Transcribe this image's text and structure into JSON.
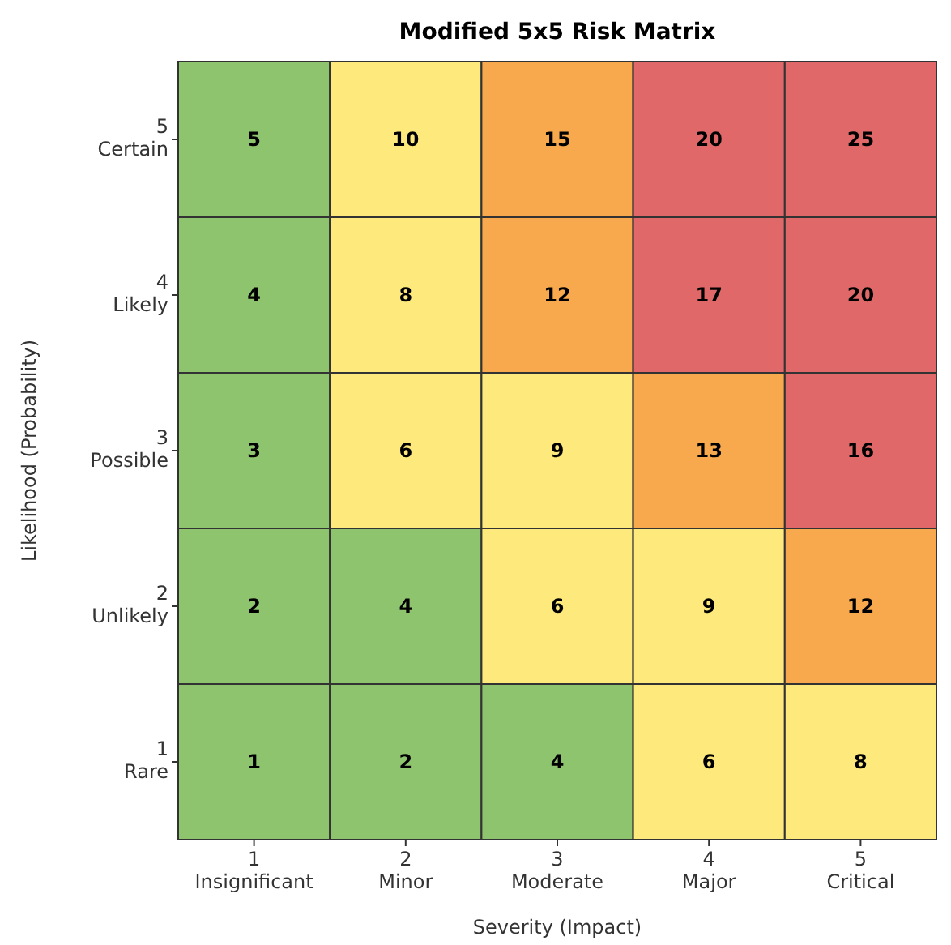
{
  "chart_data": {
    "type": "heatmap",
    "title": "Modified 5x5 Risk Matrix",
    "xlabel": "Severity (Impact)",
    "ylabel": "Likelihood (Probability)",
    "categories": [
      "1\nInsignificant",
      "2\nMinor",
      "3\nModerate",
      "4\nMajor",
      "5\nCritical"
    ],
    "y_categories": [
      "5\nCertain",
      "4\nLikely",
      "3\nPossible",
      "2\nUnlikely",
      "1\nRare"
    ],
    "cells": [
      [
        5,
        10,
        15,
        20,
        25
      ],
      [
        4,
        8,
        12,
        17,
        20
      ],
      [
        3,
        6,
        9,
        13,
        16
      ],
      [
        2,
        4,
        6,
        9,
        12
      ],
      [
        1,
        2,
        4,
        6,
        8
      ]
    ],
    "colors": [
      [
        "#8fc46f",
        "#fde97c",
        "#f9a94d",
        "#e06868",
        "#e06868"
      ],
      [
        "#8fc46f",
        "#fde97c",
        "#f9a94d",
        "#e06868",
        "#e06868"
      ],
      [
        "#8fc46f",
        "#fde97c",
        "#fde97c",
        "#f9a94d",
        "#e06868"
      ],
      [
        "#8fc46f",
        "#8fc46f",
        "#fde97c",
        "#fde97c",
        "#f9a94d"
      ],
      [
        "#8fc46f",
        "#8fc46f",
        "#8fc46f",
        "#fde97c",
        "#fde97c"
      ]
    ],
    "data_labels": true
  }
}
